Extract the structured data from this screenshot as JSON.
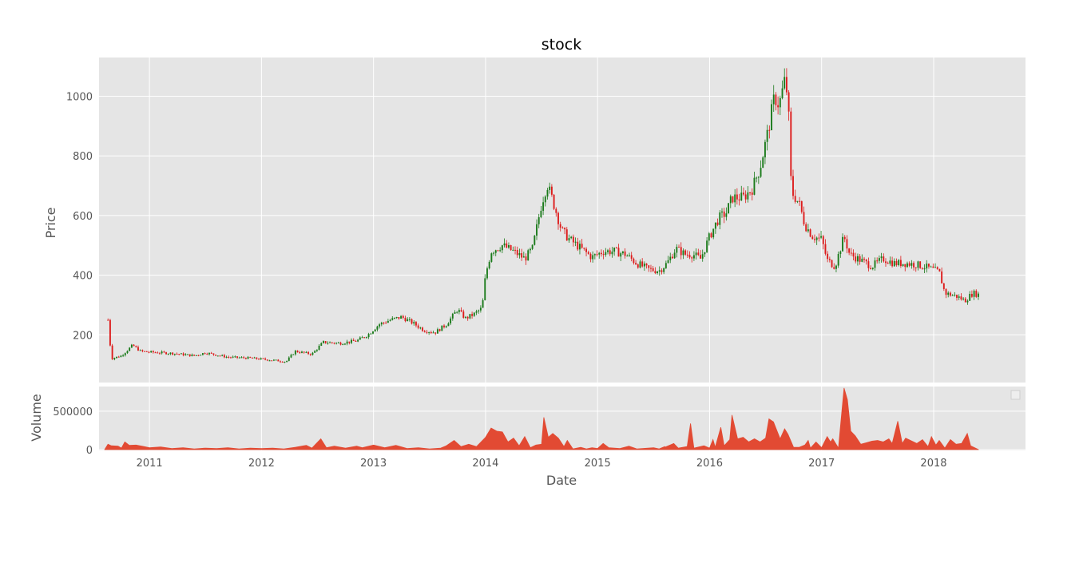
{
  "chart_data": {
    "type": "candlestick",
    "title": "stock",
    "xlabel": "Date",
    "ylabel_price": "Price",
    "ylabel_volume": "Volume",
    "xlim": [
      2010.55,
      2018.82
    ],
    "price_ylim": [
      40,
      1130
    ],
    "volume_ylim": [
      -10000,
      820000
    ],
    "x_ticks": [
      {
        "v": 2011,
        "label": "2011"
      },
      {
        "v": 2012,
        "label": "2012"
      },
      {
        "v": 2013,
        "label": "2013"
      },
      {
        "v": 2014,
        "label": "2014"
      },
      {
        "v": 2015,
        "label": "2015"
      },
      {
        "v": 2016,
        "label": "2016"
      },
      {
        "v": 2017,
        "label": "2017"
      },
      {
        "v": 2018,
        "label": "2018"
      }
    ],
    "price_ticks": [
      {
        "v": 200,
        "label": "200"
      },
      {
        "v": 400,
        "label": "400"
      },
      {
        "v": 600,
        "label": "600"
      },
      {
        "v": 800,
        "label": "800"
      },
      {
        "v": 1000,
        "label": "1000"
      }
    ],
    "volume_ticks": [
      {
        "v": 0,
        "label": "0"
      },
      {
        "v": 500000,
        "label": "500000"
      }
    ],
    "grid": true,
    "legend": "right (empty)",
    "colors": {
      "up": "#1a7a1a",
      "down": "#dd1c1c",
      "volume": "#e24a33",
      "plot_bg": "#e5e5e5",
      "grid": "#ffffff",
      "text": "#555555"
    },
    "price_points": [
      [
        2010.63,
        250
      ],
      [
        2010.66,
        120
      ],
      [
        2010.75,
        130
      ],
      [
        2010.85,
        165
      ],
      [
        2010.92,
        145
      ],
      [
        2011.0,
        142
      ],
      [
        2011.2,
        138
      ],
      [
        2011.4,
        130
      ],
      [
        2011.5,
        140
      ],
      [
        2011.7,
        125
      ],
      [
        2011.9,
        122
      ],
      [
        2012.1,
        115
      ],
      [
        2012.22,
        110
      ],
      [
        2012.3,
        145
      ],
      [
        2012.45,
        135
      ],
      [
        2012.55,
        175
      ],
      [
        2012.7,
        172
      ],
      [
        2012.85,
        180
      ],
      [
        2012.95,
        200
      ],
      [
        2013.05,
        235
      ],
      [
        2013.15,
        250
      ],
      [
        2013.25,
        260
      ],
      [
        2013.35,
        240
      ],
      [
        2013.45,
        215
      ],
      [
        2013.55,
        208
      ],
      [
        2013.65,
        235
      ],
      [
        2013.75,
        285
      ],
      [
        2013.82,
        255
      ],
      [
        2013.9,
        270
      ],
      [
        2013.97,
        290
      ],
      [
        2014.0,
        400
      ],
      [
        2014.05,
        480
      ],
      [
        2014.15,
        500
      ],
      [
        2014.25,
        480
      ],
      [
        2014.35,
        455
      ],
      [
        2014.42,
        490
      ],
      [
        2014.5,
        640
      ],
      [
        2014.55,
        705
      ],
      [
        2014.6,
        650
      ],
      [
        2014.68,
        550
      ],
      [
        2014.75,
        520
      ],
      [
        2014.85,
        490
      ],
      [
        2014.95,
        460
      ],
      [
        2015.05,
        480
      ],
      [
        2015.15,
        480
      ],
      [
        2015.25,
        470
      ],
      [
        2015.35,
        440
      ],
      [
        2015.45,
        420
      ],
      [
        2015.55,
        415
      ],
      [
        2015.62,
        440
      ],
      [
        2015.7,
        490
      ],
      [
        2015.78,
        470
      ],
      [
        2015.85,
        470
      ],
      [
        2015.92,
        455
      ],
      [
        2016.0,
        530
      ],
      [
        2016.08,
        590
      ],
      [
        2016.15,
        610
      ],
      [
        2016.2,
        660
      ],
      [
        2016.3,
        660
      ],
      [
        2016.38,
        690
      ],
      [
        2016.45,
        760
      ],
      [
        2016.52,
        880
      ],
      [
        2016.58,
        1000
      ],
      [
        2016.62,
        970
      ],
      [
        2016.67,
        1050
      ],
      [
        2016.7,
        1000
      ],
      [
        2016.73,
        680
      ],
      [
        2016.8,
        640
      ],
      [
        2016.85,
        570
      ],
      [
        2016.92,
        530
      ],
      [
        2017.0,
        520
      ],
      [
        2017.05,
        450
      ],
      [
        2017.12,
        430
      ],
      [
        2017.2,
        530
      ],
      [
        2017.25,
        470
      ],
      [
        2017.35,
        450
      ],
      [
        2017.45,
        430
      ],
      [
        2017.55,
        455
      ],
      [
        2017.65,
        440
      ],
      [
        2017.75,
        440
      ],
      [
        2017.85,
        435
      ],
      [
        2017.95,
        425
      ],
      [
        2018.05,
        410
      ],
      [
        2018.1,
        340
      ],
      [
        2018.2,
        330
      ],
      [
        2018.28,
        315
      ],
      [
        2018.35,
        340
      ],
      [
        2018.4,
        335
      ]
    ],
    "volume_points": [
      [
        2010.6,
        0
      ],
      [
        2010.63,
        70000
      ],
      [
        2010.66,
        50000
      ],
      [
        2010.72,
        45000
      ],
      [
        2010.75,
        20000
      ],
      [
        2010.78,
        100000
      ],
      [
        2010.82,
        55000
      ],
      [
        2010.88,
        60000
      ],
      [
        2010.95,
        40000
      ],
      [
        2011.0,
        25000
      ],
      [
        2011.1,
        35000
      ],
      [
        2011.2,
        15000
      ],
      [
        2011.3,
        25000
      ],
      [
        2011.4,
        10000
      ],
      [
        2011.5,
        20000
      ],
      [
        2011.6,
        15000
      ],
      [
        2011.7,
        25000
      ],
      [
        2011.8,
        10000
      ],
      [
        2011.9,
        20000
      ],
      [
        2012.0,
        15000
      ],
      [
        2012.1,
        20000
      ],
      [
        2012.2,
        10000
      ],
      [
        2012.3,
        30000
      ],
      [
        2012.4,
        55000
      ],
      [
        2012.45,
        20000
      ],
      [
        2012.53,
        140000
      ],
      [
        2012.58,
        25000
      ],
      [
        2012.65,
        45000
      ],
      [
        2012.75,
        20000
      ],
      [
        2012.85,
        45000
      ],
      [
        2012.9,
        25000
      ],
      [
        2013.0,
        60000
      ],
      [
        2013.1,
        25000
      ],
      [
        2013.2,
        55000
      ],
      [
        2013.3,
        15000
      ],
      [
        2013.4,
        25000
      ],
      [
        2013.5,
        10000
      ],
      [
        2013.6,
        20000
      ],
      [
        2013.65,
        50000
      ],
      [
        2013.72,
        120000
      ],
      [
        2013.78,
        40000
      ],
      [
        2013.85,
        70000
      ],
      [
        2013.92,
        40000
      ],
      [
        2014.0,
        160000
      ],
      [
        2014.05,
        280000
      ],
      [
        2014.1,
        240000
      ],
      [
        2014.15,
        230000
      ],
      [
        2014.2,
        100000
      ],
      [
        2014.25,
        150000
      ],
      [
        2014.3,
        50000
      ],
      [
        2014.35,
        170000
      ],
      [
        2014.4,
        25000
      ],
      [
        2014.45,
        60000
      ],
      [
        2014.5,
        70000
      ],
      [
        2014.52,
        420000
      ],
      [
        2014.56,
        160000
      ],
      [
        2014.6,
        210000
      ],
      [
        2014.65,
        150000
      ],
      [
        2014.7,
        40000
      ],
      [
        2014.73,
        120000
      ],
      [
        2014.78,
        10000
      ],
      [
        2014.85,
        30000
      ],
      [
        2014.9,
        10000
      ],
      [
        2014.95,
        25000
      ],
      [
        2015.0,
        15000
      ],
      [
        2015.05,
        80000
      ],
      [
        2015.1,
        25000
      ],
      [
        2015.2,
        15000
      ],
      [
        2015.28,
        45000
      ],
      [
        2015.35,
        10000
      ],
      [
        2015.5,
        25000
      ],
      [
        2015.55,
        10000
      ],
      [
        2015.6,
        40000
      ],
      [
        2015.6,
        30000
      ],
      [
        2015.68,
        80000
      ],
      [
        2015.72,
        20000
      ],
      [
        2015.8,
        40000
      ],
      [
        2015.83,
        340000
      ],
      [
        2015.86,
        20000
      ],
      [
        2015.95,
        50000
      ],
      [
        2016.0,
        20000
      ],
      [
        2016.03,
        130000
      ],
      [
        2016.05,
        30000
      ],
      [
        2016.1,
        290000
      ],
      [
        2016.13,
        50000
      ],
      [
        2016.18,
        130000
      ],
      [
        2016.2,
        450000
      ],
      [
        2016.25,
        140000
      ],
      [
        2016.3,
        160000
      ],
      [
        2016.35,
        100000
      ],
      [
        2016.4,
        140000
      ],
      [
        2016.45,
        100000
      ],
      [
        2016.5,
        150000
      ],
      [
        2016.53,
        400000
      ],
      [
        2016.57,
        360000
      ],
      [
        2016.6,
        250000
      ],
      [
        2016.63,
        140000
      ],
      [
        2016.67,
        270000
      ],
      [
        2016.7,
        200000
      ],
      [
        2016.75,
        30000
      ],
      [
        2016.8,
        30000
      ],
      [
        2016.85,
        60000
      ],
      [
        2016.88,
        120000
      ],
      [
        2016.9,
        20000
      ],
      [
        2016.95,
        100000
      ],
      [
        2017.0,
        25000
      ],
      [
        2017.05,
        170000
      ],
      [
        2017.08,
        100000
      ],
      [
        2017.1,
        140000
      ],
      [
        2017.15,
        20000
      ],
      [
        2017.2,
        800000
      ],
      [
        2017.23,
        650000
      ],
      [
        2017.26,
        240000
      ],
      [
        2017.3,
        180000
      ],
      [
        2017.35,
        70000
      ],
      [
        2017.4,
        90000
      ],
      [
        2017.45,
        110000
      ],
      [
        2017.5,
        120000
      ],
      [
        2017.55,
        100000
      ],
      [
        2017.6,
        140000
      ],
      [
        2017.63,
        80000
      ],
      [
        2017.68,
        370000
      ],
      [
        2017.72,
        80000
      ],
      [
        2017.75,
        150000
      ],
      [
        2017.85,
        80000
      ],
      [
        2017.9,
        130000
      ],
      [
        2017.95,
        40000
      ],
      [
        2017.98,
        170000
      ],
      [
        2018.02,
        60000
      ],
      [
        2018.05,
        120000
      ],
      [
        2018.1,
        20000
      ],
      [
        2018.15,
        130000
      ],
      [
        2018.2,
        70000
      ],
      [
        2018.25,
        80000
      ],
      [
        2018.3,
        210000
      ],
      [
        2018.33,
        50000
      ],
      [
        2018.4,
        0
      ]
    ]
  }
}
